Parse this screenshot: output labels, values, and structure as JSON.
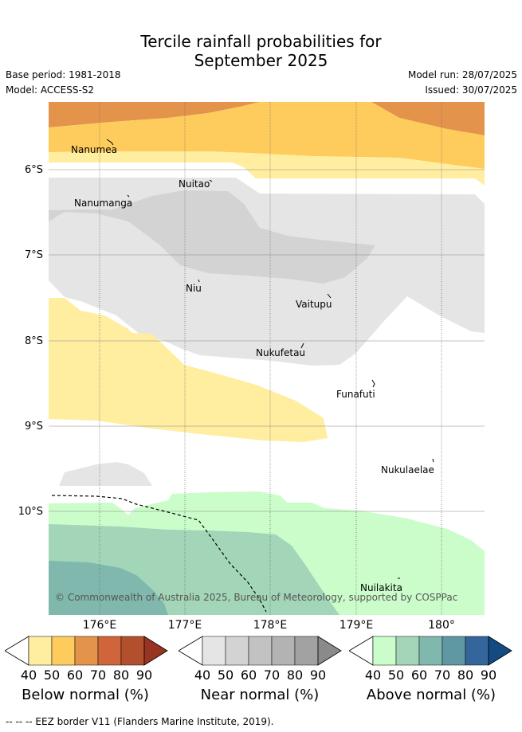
{
  "title_line1": "Tercile rainfall probabilities for",
  "title_line2": "September 2025",
  "base_period": "Base period: 1981-2018",
  "model": "Model: ACCESS-S2",
  "model_run": "Model run: 28/07/2025",
  "issued": "Issued: 30/07/2025",
  "map": {
    "lon_range": [
      175.4,
      180.5
    ],
    "lat_range": [
      -11.2,
      -5.2
    ],
    "lat_ticks": [
      "6°S",
      "7°S",
      "8°S",
      "9°S",
      "10°S"
    ],
    "lon_ticks": [
      "176°E",
      "177°E",
      "178°E",
      "179°E",
      "180°"
    ],
    "places": [
      "Nanumea",
      "Nuitao",
      "Nanumanga",
      "Niu",
      "Vaitupu",
      "Nukufetau",
      "Funafuti",
      "Nukulaelae",
      "Nuilakita"
    ],
    "copyright": "© Commonwealth of Australia 2025, Bureau of Meteorology, supported by COSPPac"
  },
  "colorbars": [
    {
      "label": "Below normal (%)",
      "ticks": [
        "40",
        "50",
        "60",
        "70",
        "80",
        "90"
      ],
      "colors": [
        "#ffffff",
        "#ffeda0",
        "#fecc5c",
        "#e3944a",
        "#d0653b",
        "#b2502d",
        "#993322"
      ]
    },
    {
      "label": "Near normal (%)",
      "ticks": [
        "40",
        "50",
        "60",
        "70",
        "80",
        "90"
      ],
      "colors": [
        "#ffffff",
        "#e5e5e5",
        "#d3d3d3",
        "#c2c2c2",
        "#b3b3b3",
        "#a2a2a2",
        "#8a8a8a"
      ]
    },
    {
      "label": "Above normal (%)",
      "ticks": [
        "40",
        "50",
        "60",
        "70",
        "80",
        "90"
      ],
      "colors": [
        "#ffffff",
        "#cbfdcb",
        "#a3d6b9",
        "#80b8ae",
        "#5f97a3",
        "#34669c",
        "#144a82"
      ]
    }
  ],
  "footer": "-- -- -- EEZ border V11 (Flanders Marine Institute, 2019)."
}
